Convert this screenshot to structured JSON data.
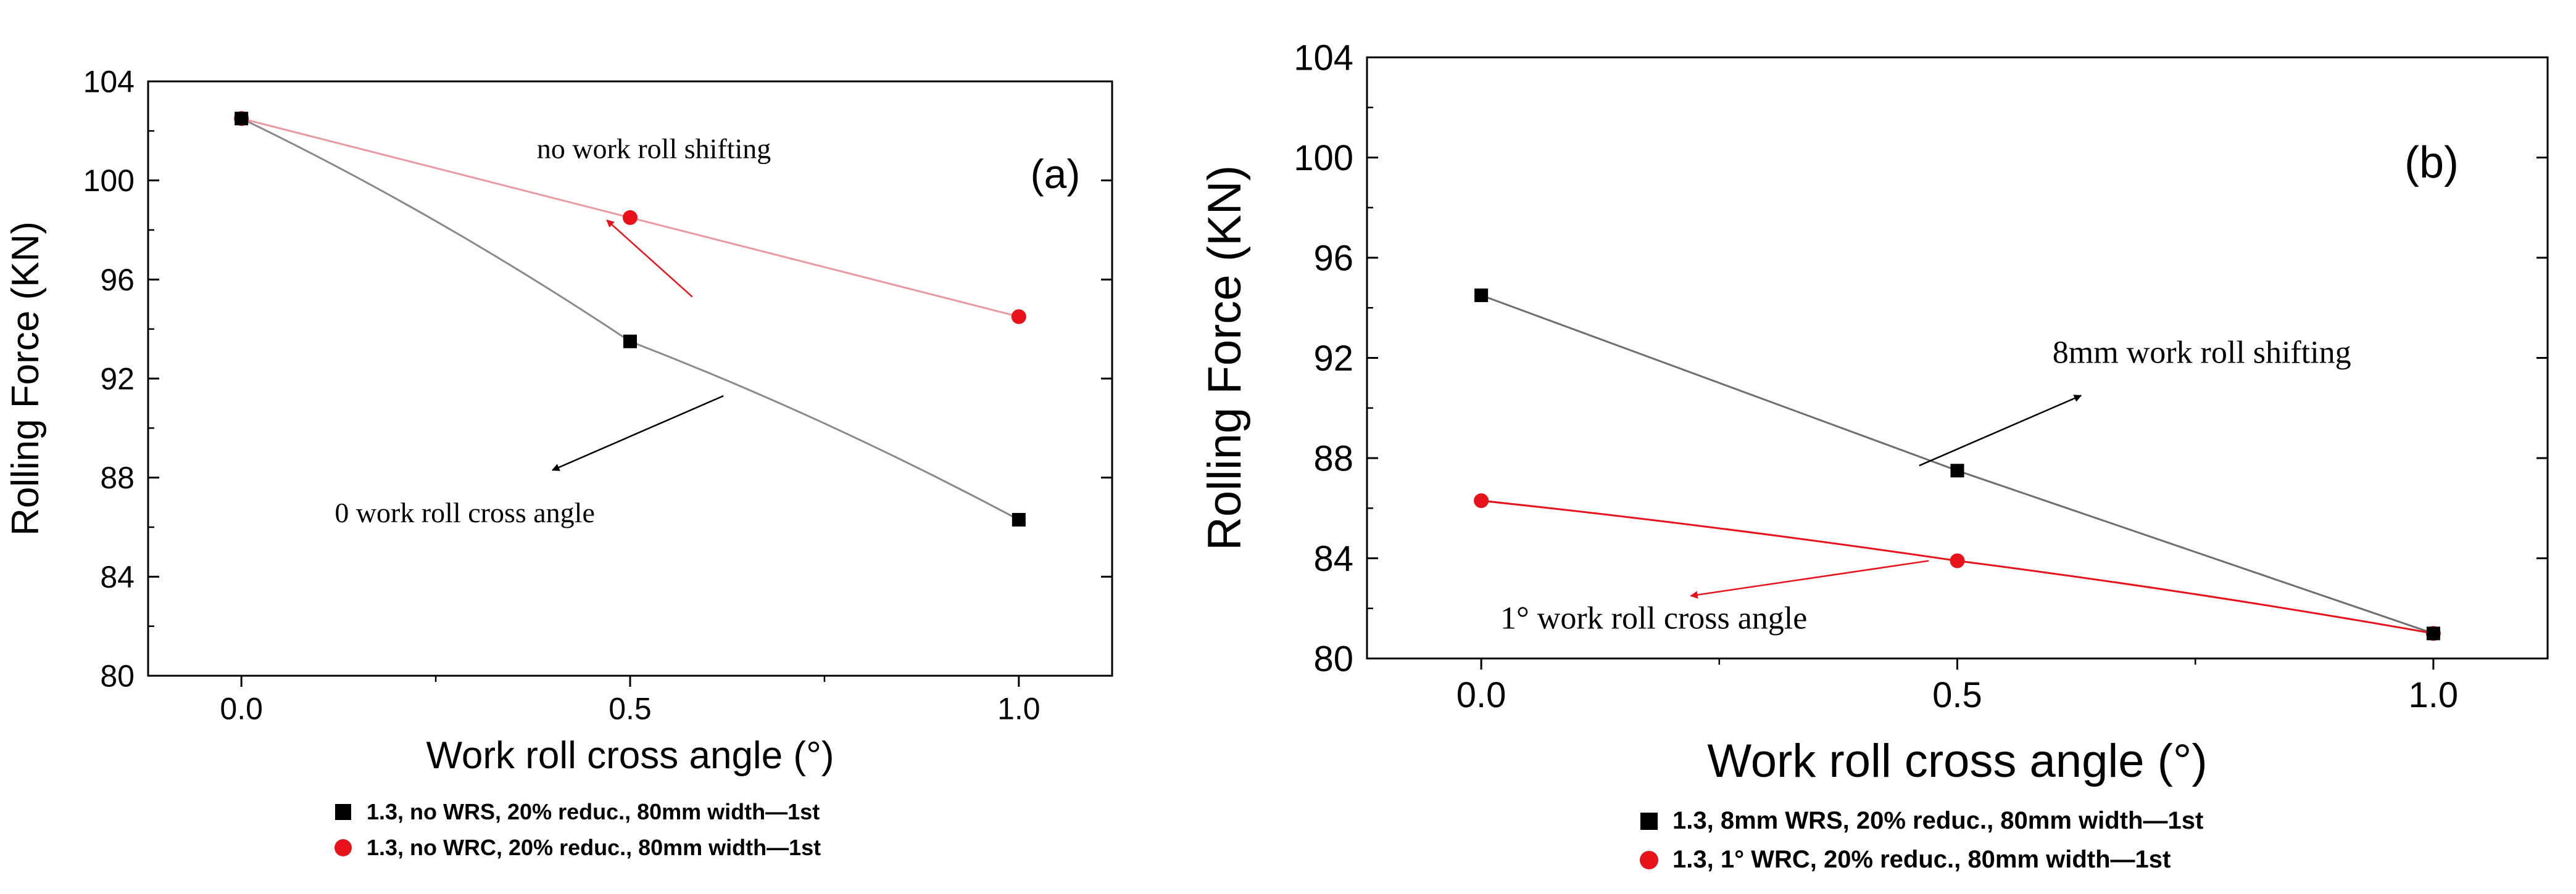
{
  "chart_data": [
    {
      "type": "line",
      "panel_label": "(a)",
      "xlabel": "Work roll cross angle (°)",
      "ylabel": "Rolling Force (KN)",
      "xlim": [
        -0.12,
        1.12
      ],
      "ylim": [
        80,
        104
      ],
      "x_ticks": [
        0.0,
        0.5,
        1.0
      ],
      "x_tick_labels": [
        "0.0",
        "0.5",
        "1.0"
      ],
      "y_ticks": [
        80,
        84,
        88,
        92,
        96,
        100,
        104
      ],
      "y_tick_labels": [
        "80",
        "84",
        "88",
        "92",
        "96",
        "100",
        "104"
      ],
      "series": [
        {
          "name": "1.3, no WRS, 20% reduc., 80mm width—1st",
          "marker": "square",
          "color": "#000000",
          "line_color": "#8a8a8a",
          "curved": true,
          "x": [
            0.0,
            0.5,
            1.0
          ],
          "y": [
            102.5,
            93.5,
            86.3
          ]
        },
        {
          "name": "1.3, no WRC, 20% reduc., 80mm width—1st",
          "marker": "circle",
          "color": "#e8121b",
          "line_color": "#e89aa0",
          "curved": false,
          "x": [
            0.0,
            0.5,
            1.0
          ],
          "y": [
            102.5,
            98.5,
            94.5
          ]
        }
      ],
      "annotations": [
        {
          "text": "no work roll shifting",
          "arrow_color": "#e8121b",
          "text_x": 0.38,
          "text_y": 100.9,
          "arrow_from": [
            0.58,
            95.3
          ],
          "arrow_to": [
            0.47,
            98.4
          ]
        },
        {
          "text": "0 work roll cross angle",
          "arrow_color": "#000000",
          "text_x": 0.12,
          "text_y": 86.2,
          "arrow_from": [
            0.62,
            91.3
          ],
          "arrow_to": [
            0.4,
            88.3
          ]
        }
      ]
    },
    {
      "type": "line",
      "panel_label": "(b)",
      "xlabel": "Work roll cross angle (°)",
      "ylabel": "Rolling Force (KN)",
      "xlim": [
        -0.12,
        1.12
      ],
      "ylim": [
        80,
        104
      ],
      "x_ticks": [
        0.0,
        0.5,
        1.0
      ],
      "x_tick_labels": [
        "0.0",
        "0.5",
        "1.0"
      ],
      "y_ticks": [
        80,
        84,
        88,
        92,
        96,
        100,
        104
      ],
      "y_tick_labels": [
        "80",
        "84",
        "88",
        "92",
        "96",
        "100",
        "104"
      ],
      "series": [
        {
          "name": "1.3, 8mm WRS, 20% reduc., 80mm width—1st",
          "marker": "square",
          "color": "#000000",
          "line_color": "#6e6e6e",
          "curved": false,
          "x": [
            0.0,
            0.5,
            1.0
          ],
          "y": [
            94.5,
            87.5,
            81.0
          ]
        },
        {
          "name": "1.3, 1° WRC, 20% reduc., 80mm width—1st",
          "marker": "circle",
          "color": "#e8121b",
          "line_color": "#e8121b",
          "curved": true,
          "x": [
            0.0,
            0.5,
            1.0
          ],
          "y": [
            86.3,
            83.9,
            81.0
          ]
        }
      ],
      "annotations": [
        {
          "text": "8mm work roll shifting",
          "arrow_color": "#000000",
          "text_x": 0.6,
          "text_y": 91.8,
          "arrow_from": [
            0.46,
            87.7
          ],
          "arrow_to": [
            0.63,
            90.5
          ]
        },
        {
          "text": "1° work roll cross angle",
          "arrow_color": "#e8121b",
          "text_x": 0.02,
          "text_y": 81.2,
          "arrow_from": [
            0.47,
            83.9
          ],
          "arrow_to": [
            0.22,
            82.5
          ]
        }
      ]
    }
  ]
}
